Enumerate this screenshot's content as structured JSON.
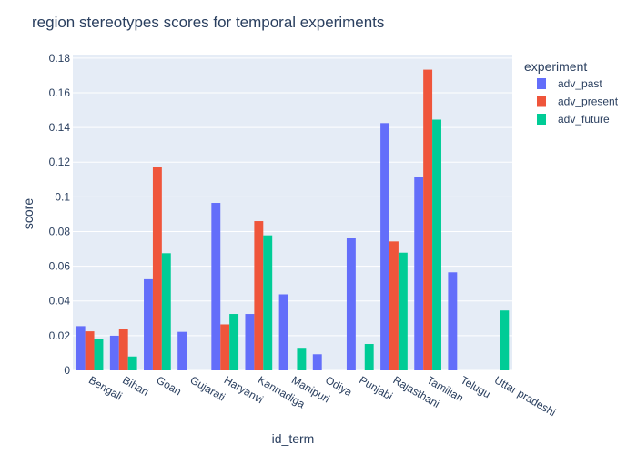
{
  "chart_data": {
    "type": "bar",
    "title": "region stereotypes scores for temporal experiments",
    "xlabel": "id_term",
    "ylabel": "score",
    "ylim": [
      0,
      0.182
    ],
    "yticks": [
      "0",
      "0.02",
      "0.04",
      "0.06",
      "0.08",
      "0.1",
      "0.12",
      "0.14",
      "0.16",
      "0.18"
    ],
    "grid": true,
    "legend_title": "experiment",
    "legend_position": "top-right",
    "categories": [
      "Bengali",
      "Bihari",
      "Goan",
      "Gujarati",
      "Haryanvi",
      "Kannadiga",
      "Manipuri",
      "Odiya",
      "Punjabi",
      "Rajasthani",
      "Tamilian",
      "Telugu",
      "Uttar pradeshi"
    ],
    "series": [
      {
        "name": "adv_past",
        "color": "#636efa",
        "values": [
          0.0255,
          0.02,
          0.0525,
          0.0222,
          0.0965,
          0.0325,
          0.0438,
          0.0093,
          0.0765,
          0.1425,
          0.1113,
          0.0565,
          0
        ]
      },
      {
        "name": "adv_present",
        "color": "#ef553b",
        "values": [
          0.0225,
          0.024,
          0.117,
          0,
          0.0265,
          0.086,
          0,
          0,
          0,
          0.0743,
          0.1733,
          0,
          0
        ]
      },
      {
        "name": "adv_future",
        "color": "#00cc96",
        "values": [
          0.018,
          0.008,
          0.0675,
          0,
          0.0325,
          0.0778,
          0.013,
          0,
          0.0152,
          0.0678,
          0.1445,
          0,
          0.0345
        ]
      }
    ]
  }
}
